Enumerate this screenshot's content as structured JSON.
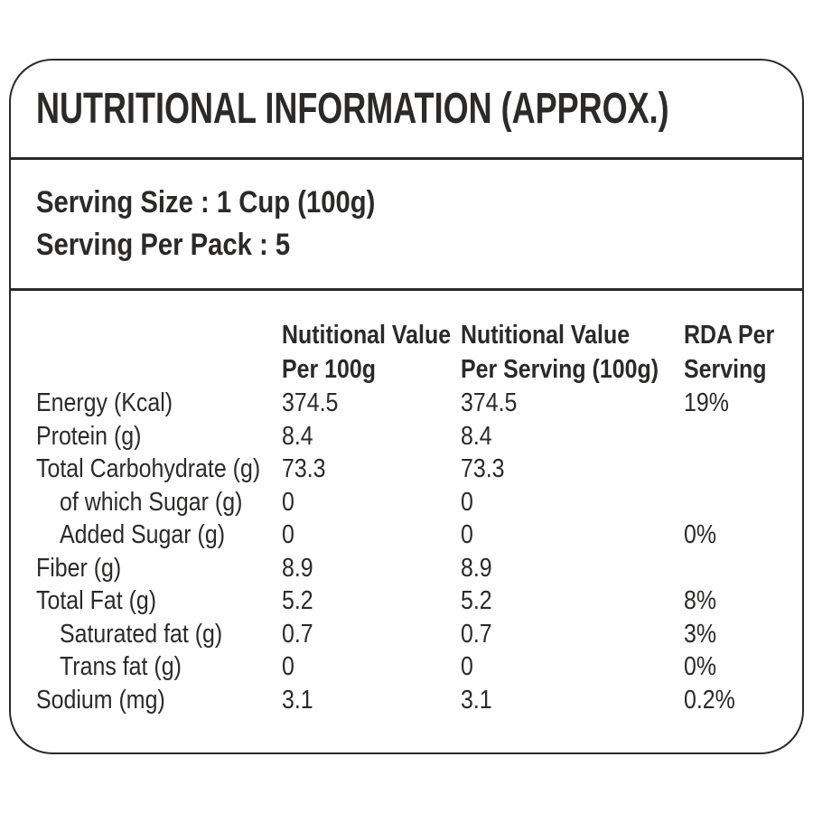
{
  "label": {
    "title": "NUTRITIONAL INFORMATION (APPROX.)",
    "serving": {
      "size_line": "Serving Size : 1 Cup (100g)",
      "pack_line": "Serving Per Pack : 5"
    },
    "table": {
      "headers": {
        "per_100g": {
          "line1": "Nutitional Value",
          "line2": "Per 100g"
        },
        "per_serving": {
          "line1": "Nutitional Value",
          "line2": "Per Serving (100g)"
        },
        "rda": {
          "line1": "RDA Per",
          "line2": "Serving"
        }
      },
      "rows": [
        {
          "name": "Energy (Kcal)",
          "indent": false,
          "per_100g": "374.5",
          "per_serving": "374.5",
          "rda": "19%"
        },
        {
          "name": "Protein (g)",
          "indent": false,
          "per_100g": "8.4",
          "per_serving": "8.4",
          "rda": ""
        },
        {
          "name": "Total Carbohydrate (g)",
          "indent": false,
          "per_100g": "73.3",
          "per_serving": "73.3",
          "rda": ""
        },
        {
          "name": "of which Sugar (g)",
          "indent": true,
          "per_100g": "0",
          "per_serving": "0",
          "rda": ""
        },
        {
          "name": "Added Sugar (g)",
          "indent": true,
          "per_100g": "0",
          "per_serving": "0",
          "rda": "0%"
        },
        {
          "name": "Fiber (g)",
          "indent": false,
          "per_100g": "8.9",
          "per_serving": "8.9",
          "rda": ""
        },
        {
          "name": "Total Fat (g)",
          "indent": false,
          "per_100g": "5.2",
          "per_serving": "5.2",
          "rda": "8%"
        },
        {
          "name": "Saturated fat (g)",
          "indent": true,
          "per_100g": "0.7",
          "per_serving": "0.7",
          "rda": "3%"
        },
        {
          "name": "Trans fat (g)",
          "indent": true,
          "per_100g": "0",
          "per_serving": "0",
          "rda": "0%"
        },
        {
          "name": "Sodium (mg)",
          "indent": false,
          "per_100g": "3.1",
          "per_serving": "3.1",
          "rda": "0.2%"
        }
      ]
    },
    "colors": {
      "text": "#2b2a29",
      "border": "#2b2a29",
      "background": "#ffffff"
    }
  }
}
